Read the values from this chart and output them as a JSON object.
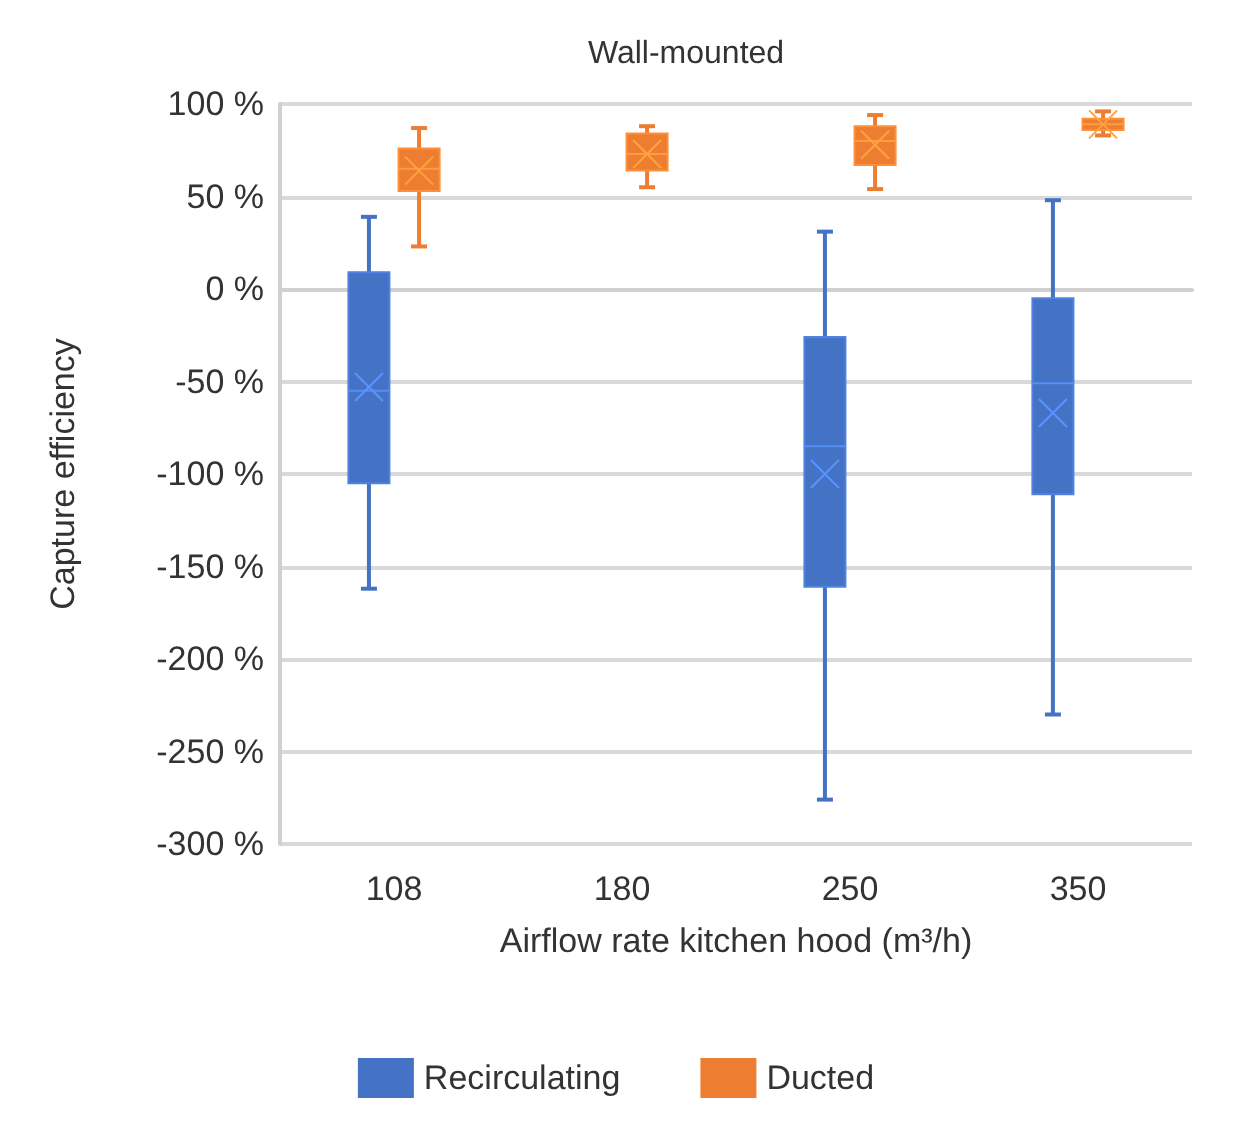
{
  "chart_data": {
    "type": "box",
    "title": "Wall-mounted",
    "xlabel": "Airflow rate kitchen hood (m³/h)",
    "ylabel": "Capture efficiency",
    "categories": [
      "108",
      "180",
      "250",
      "350"
    ],
    "series": [
      {
        "name": "Recirculating",
        "color": "#4472c4",
        "boxes": [
          {
            "low": -162,
            "q1": -105,
            "median": -55,
            "q3": 9,
            "high": 39,
            "mean": -53
          },
          null,
          {
            "low": -276,
            "q1": -161,
            "median": -85,
            "q3": -26,
            "high": 31,
            "mean": -100
          },
          {
            "low": -230,
            "q1": -111,
            "median": -51,
            "q3": -5,
            "high": 48,
            "mean": -67
          }
        ]
      },
      {
        "name": "Ducted",
        "color": "#ed7d31",
        "boxes": [
          {
            "low": 23,
            "q1": 53,
            "median": 65,
            "q3": 76,
            "high": 87,
            "mean": 64
          },
          {
            "low": 55,
            "q1": 64,
            "median": 73,
            "q3": 84,
            "high": 88,
            "mean": 73
          },
          {
            "low": 54,
            "q1": 67,
            "median": 80,
            "q3": 88,
            "high": 94,
            "mean": 78
          },
          {
            "low": 83,
            "q1": 86,
            "median": 89,
            "q3": 92,
            "high": 96,
            "mean": 89
          }
        ]
      }
    ],
    "ylim": [
      -300,
      100
    ],
    "yticks": [
      {
        "value": -300,
        "label": "-300 %"
      },
      {
        "value": -250,
        "label": "-250 %"
      },
      {
        "value": -200,
        "label": "-200 %"
      },
      {
        "value": -150,
        "label": "-150 %"
      },
      {
        "value": -100,
        "label": "-100 %"
      },
      {
        "value": -50,
        "label": "-50 %"
      },
      {
        "value": 0,
        "label": "0 %"
      },
      {
        "value": 50,
        "label": "50 %"
      },
      {
        "value": 100,
        "label": "100 %"
      }
    ],
    "grid": "y",
    "legend": "bottom"
  }
}
